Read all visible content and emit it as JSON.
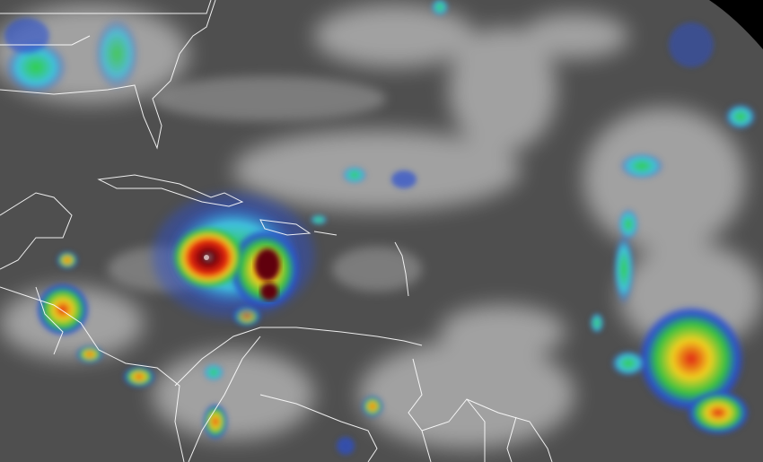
{
  "image": {
    "kind": "infrared satellite imagery",
    "colors": {
      "background": "#555555",
      "cloud_light": "#c8c8c8",
      "convection_blue": "#2a4fd0",
      "convection_cyan": "#40d0e0",
      "convection_green": "#30d040",
      "convection_yellow": "#f0e020",
      "convection_red": "#e02010",
      "eye_core": "#600010",
      "coastline": "#ffffff",
      "space_corner": "#000000"
    }
  }
}
